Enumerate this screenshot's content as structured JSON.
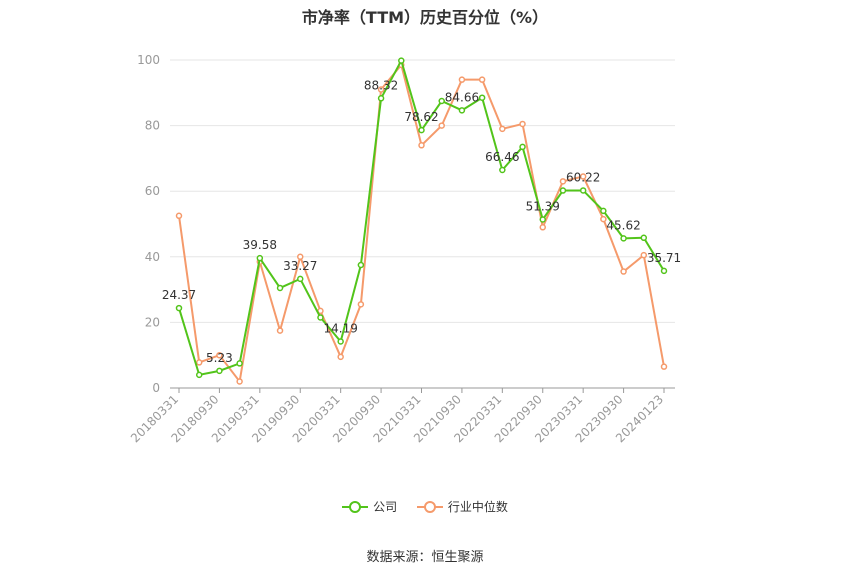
{
  "chart_data": {
    "type": "line",
    "title": "市净率（TTM）历史百分位（%）",
    "source": "数据来源：恒生聚源",
    "ylim": [
      0,
      100
    ],
    "yticks": [
      0,
      20,
      40,
      60,
      80,
      100
    ],
    "grid": true,
    "legend_position": "bottom",
    "x_tick_labels": [
      "20180331",
      "20180930",
      "20190331",
      "20190930",
      "20200331",
      "20200930",
      "20210331",
      "20210930",
      "20220331",
      "20220930",
      "20230331",
      "20230930",
      "20240123"
    ],
    "x_tick_positions": [
      0,
      2,
      4,
      6,
      8,
      10,
      12,
      14,
      16,
      18,
      20,
      22,
      24
    ],
    "series": [
      {
        "name": "公司",
        "color": "#52c41a",
        "values": [
          24.37,
          4.0,
          5.23,
          7.5,
          39.58,
          30.5,
          33.27,
          21.5,
          14.19,
          37.5,
          88.32,
          99.8,
          78.62,
          87.5,
          84.66,
          88.5,
          66.46,
          73.5,
          51.39,
          60.2,
          60.22,
          54.0,
          45.62,
          45.8,
          35.71
        ]
      },
      {
        "name": "行业中位数",
        "color": "#f59a6b",
        "values": [
          52.5,
          7.8,
          10.0,
          2.0,
          38.5,
          17.5,
          40.0,
          23.5,
          9.5,
          25.5,
          91.0,
          98.5,
          74.0,
          80.0,
          94.0,
          94.0,
          79.0,
          80.5,
          49.0,
          63.0,
          64.5,
          51.5,
          35.5,
          40.5,
          6.5
        ]
      }
    ],
    "data_labels": [
      {
        "index": 0,
        "text": "24.37"
      },
      {
        "index": 2,
        "text": "5.23"
      },
      {
        "index": 4,
        "text": "39.58"
      },
      {
        "index": 6,
        "text": "33.27"
      },
      {
        "index": 8,
        "text": "14.19"
      },
      {
        "index": 10,
        "text": "88.32"
      },
      {
        "index": 12,
        "text": "78.62"
      },
      {
        "index": 14,
        "text": "84.66"
      },
      {
        "index": 16,
        "text": "66.46"
      },
      {
        "index": 18,
        "text": "51.39"
      },
      {
        "index": 20,
        "text": "60.22"
      },
      {
        "index": 22,
        "text": "45.62"
      },
      {
        "index": 24,
        "text": "35.71"
      }
    ]
  }
}
